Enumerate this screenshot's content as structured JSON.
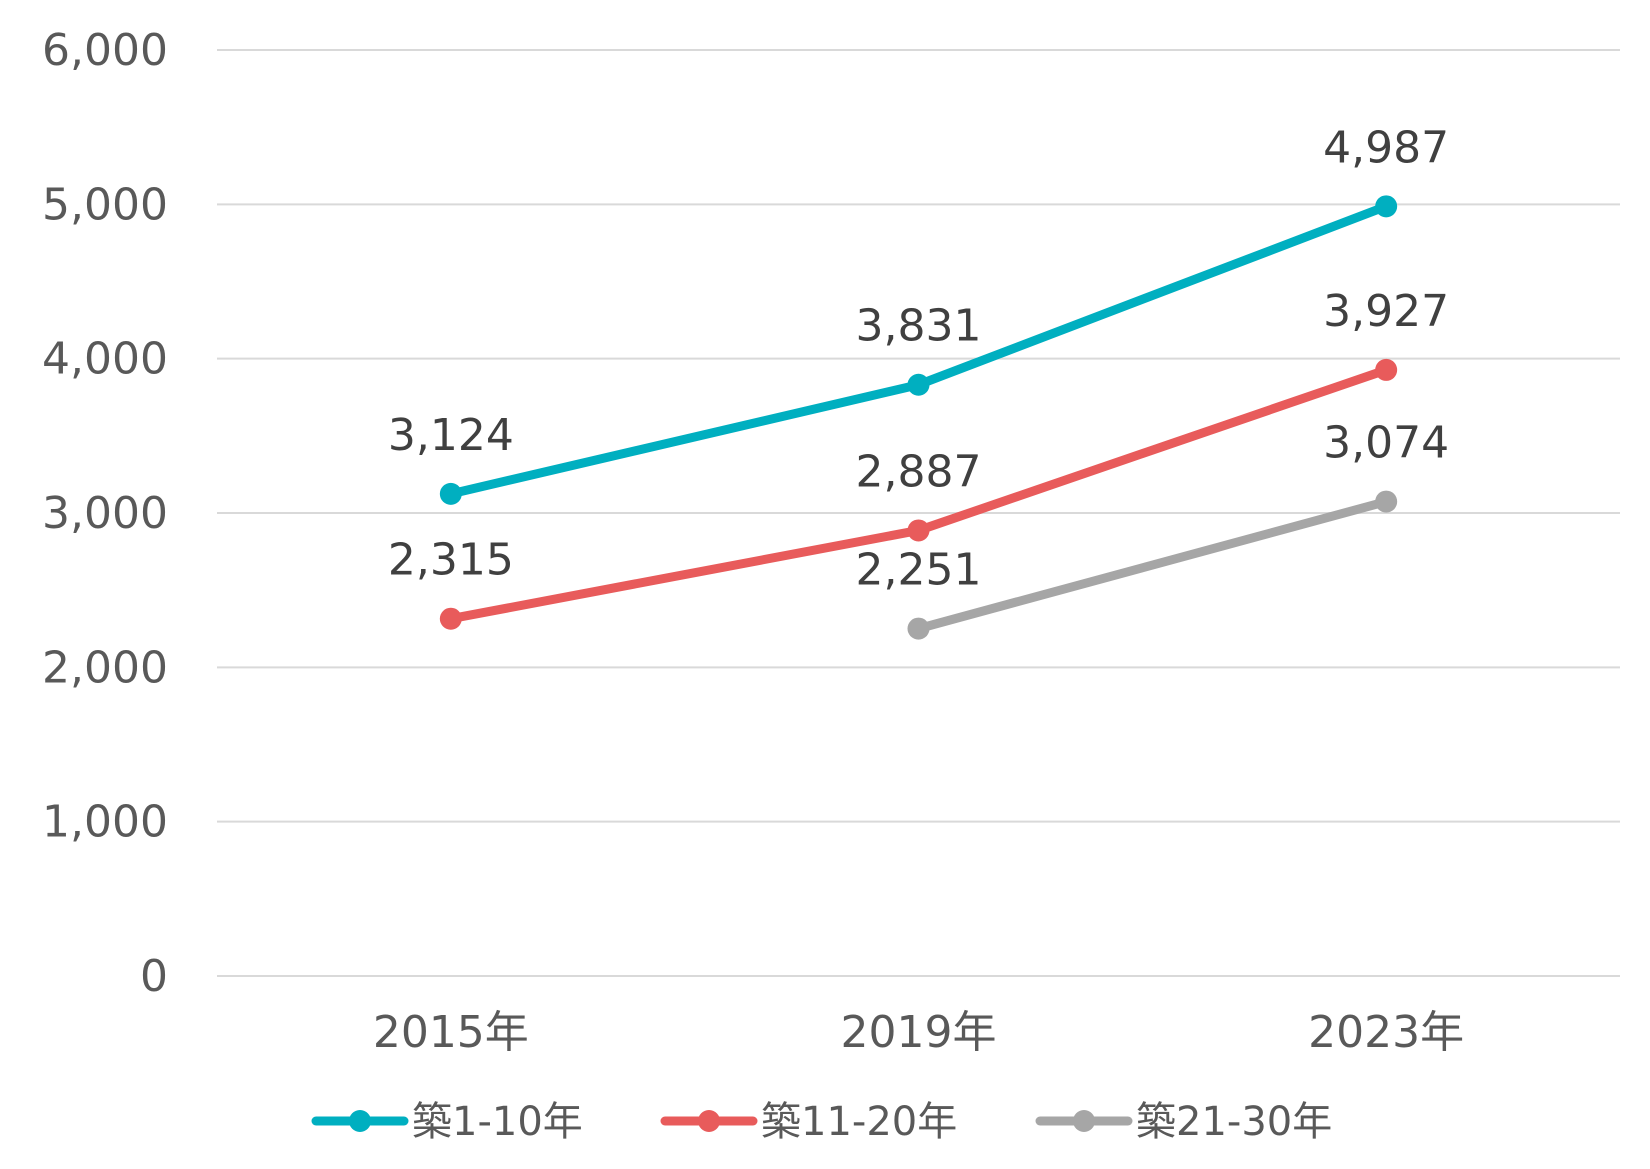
{
  "chart_data": {
    "type": "line",
    "categories": [
      "2015年",
      "2019年",
      "2023年"
    ],
    "series": [
      {
        "name": "築1-10年",
        "values": [
          3124,
          3831,
          4987
        ],
        "labels": [
          "3,124",
          "3,831",
          "4,987"
        ],
        "color": "#00AFC0"
      },
      {
        "name": "築11-20年",
        "values": [
          2315,
          2887,
          3927
        ],
        "labels": [
          "2,315",
          "2,887",
          "3,927"
        ],
        "color": "#E85B5B"
      },
      {
        "name": "築21-30年",
        "values": [
          null,
          2251,
          3074
        ],
        "labels": [
          "",
          "2,251",
          "3,074"
        ],
        "color": "#A6A6A6"
      }
    ],
    "ylim": [
      0,
      6000
    ],
    "yticks": [
      0,
      1000,
      2000,
      3000,
      4000,
      5000,
      6000
    ],
    "ytick_labels": [
      "0",
      "1,000",
      "2,000",
      "3,000",
      "4,000",
      "5,000",
      "6,000"
    ],
    "grid": true,
    "gridline_color": "#D9D9D9",
    "legend": "bottom",
    "title": "",
    "xlabel": "",
    "ylabel": ""
  }
}
